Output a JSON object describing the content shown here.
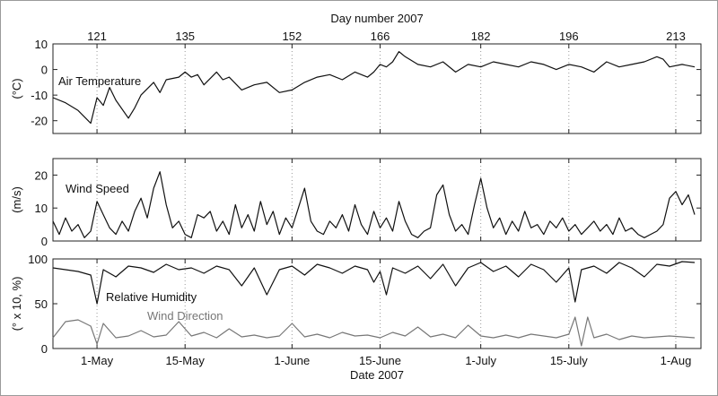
{
  "figure": {
    "top_axis_title": "Day number 2007",
    "bottom_axis_title": "Date 2007"
  },
  "chart_data": {
    "type": "line",
    "x_axis": {
      "unit": "day of year 2007",
      "range": [
        114,
        217
      ],
      "bottom_ticks": [
        {
          "day": 121,
          "label": "1-May"
        },
        {
          "day": 135,
          "label": "15-May"
        },
        {
          "day": 152,
          "label": "1-June"
        },
        {
          "day": 166,
          "label": "15-June"
        },
        {
          "day": 182,
          "label": "1-July"
        },
        {
          "day": 196,
          "label": "15-July"
        },
        {
          "day": 213,
          "label": "1-Aug"
        }
      ],
      "top_ticks": [
        121,
        135,
        152,
        166,
        182,
        196,
        213
      ],
      "grid": true
    },
    "panels": [
      {
        "ylabel": "(°C)",
        "ylim": [
          -25,
          10
        ],
        "yticks": [
          10,
          0,
          -10,
          -20
        ],
        "series": [
          {
            "name": "Air Temperature",
            "color": "#111111",
            "x": [
              114,
              116,
              118,
              120,
              121,
              122,
              123,
              124,
              126,
              127,
              128,
              130,
              131,
              132,
              134,
              135,
              136,
              137,
              138,
              140,
              141,
              142,
              144,
              146,
              148,
              150,
              152,
              154,
              156,
              158,
              160,
              162,
              164,
              165,
              166,
              167,
              168,
              169,
              170,
              172,
              174,
              176,
              178,
              180,
              182,
              184,
              186,
              188,
              190,
              192,
              194,
              196,
              198,
              200,
              202,
              204,
              206,
              208,
              210,
              211,
              212,
              214,
              216
            ],
            "y": [
              -11,
              -13,
              -16,
              -21,
              -11,
              -14,
              -7,
              -12,
              -19,
              -15,
              -10,
              -5,
              -9,
              -4,
              -3,
              -1,
              -3,
              -2,
              -6,
              -1,
              -4,
              -3,
              -8,
              -6,
              -5,
              -9,
              -8,
              -5,
              -3,
              -2,
              -4,
              -1,
              -3,
              -1,
              2,
              1,
              3,
              7,
              5,
              2,
              1,
              3,
              -1,
              2,
              1,
              3,
              2,
              1,
              3,
              2,
              0,
              2,
              1,
              -1,
              3,
              1,
              2,
              3,
              5,
              4,
              1,
              2,
              1
            ]
          }
        ]
      },
      {
        "ylabel": "(m/s)",
        "ylim": [
          0,
          25
        ],
        "yticks": [
          20,
          10,
          0
        ],
        "series": [
          {
            "name": "Wind Speed",
            "color": "#111111",
            "x": [
              114,
              115,
              116,
              117,
              118,
              119,
              120,
              121,
              122,
              123,
              124,
              125,
              126,
              127,
              128,
              129,
              130,
              131,
              132,
              133,
              134,
              135,
              136,
              137,
              138,
              139,
              140,
              141,
              142,
              143,
              144,
              145,
              146,
              147,
              148,
              149,
              150,
              151,
              152,
              153,
              154,
              155,
              156,
              157,
              158,
              159,
              160,
              161,
              162,
              163,
              164,
              165,
              166,
              167,
              168,
              169,
              170,
              171,
              172,
              173,
              174,
              175,
              176,
              177,
              178,
              179,
              180,
              181,
              182,
              183,
              184,
              185,
              186,
              187,
              188,
              189,
              190,
              191,
              192,
              193,
              194,
              195,
              196,
              197,
              198,
              199,
              200,
              201,
              202,
              203,
              204,
              205,
              206,
              207,
              208,
              209,
              210,
              211,
              212,
              213,
              214,
              215,
              216
            ],
            "y": [
              6,
              2,
              7,
              3,
              5,
              1,
              3,
              12,
              8,
              4,
              2,
              6,
              3,
              9,
              13,
              7,
              16,
              21,
              11,
              4,
              6,
              2,
              1,
              8,
              7,
              9,
              3,
              6,
              2,
              11,
              4,
              8,
              3,
              12,
              5,
              9,
              2,
              7,
              4,
              10,
              16,
              6,
              3,
              2,
              6,
              4,
              8,
              3,
              11,
              5,
              2,
              9,
              4,
              7,
              3,
              12,
              6,
              2,
              1,
              3,
              4,
              14,
              17,
              8,
              3,
              5,
              2,
              11,
              19,
              10,
              4,
              7,
              2,
              6,
              3,
              9,
              4,
              5,
              2,
              6,
              4,
              7,
              3,
              5,
              2,
              4,
              6,
              3,
              5,
              2,
              7,
              3,
              4,
              2,
              1,
              2,
              3,
              5,
              13,
              15,
              11,
              14,
              8
            ]
          }
        ]
      },
      {
        "ylabel": "(° x 10, %)",
        "ylim": [
          0,
          100
        ],
        "yticks": [
          100,
          50,
          0
        ],
        "series": [
          {
            "name": "Relative Humidity",
            "color": "#111111",
            "x": [
              114,
              116,
              118,
              120,
              121,
              122,
              124,
              126,
              128,
              130,
              132,
              134,
              136,
              138,
              140,
              142,
              144,
              146,
              148,
              150,
              152,
              154,
              156,
              158,
              160,
              162,
              164,
              165,
              166,
              167,
              168,
              170,
              172,
              174,
              176,
              178,
              180,
              182,
              184,
              186,
              188,
              190,
              192,
              194,
              196,
              197,
              198,
              200,
              202,
              204,
              206,
              208,
              210,
              212,
              214,
              216
            ],
            "y": [
              90,
              88,
              86,
              82,
              50,
              88,
              80,
              92,
              90,
              85,
              94,
              88,
              90,
              84,
              92,
              88,
              70,
              90,
              60,
              88,
              92,
              82,
              94,
              90,
              84,
              92,
              88,
              74,
              86,
              60,
              90,
              84,
              92,
              78,
              94,
              70,
              90,
              96,
              86,
              92,
              80,
              94,
              88,
              74,
              90,
              52,
              88,
              92,
              84,
              96,
              90,
              80,
              94,
              92,
              97,
              96
            ]
          },
          {
            "name": "Wind Direction",
            "color": "#777777",
            "x": [
              114,
              116,
              118,
              120,
              121,
              122,
              124,
              126,
              128,
              130,
              132,
              134,
              136,
              138,
              140,
              142,
              144,
              146,
              148,
              150,
              152,
              154,
              156,
              158,
              160,
              162,
              164,
              166,
              168,
              170,
              172,
              174,
              176,
              178,
              180,
              182,
              184,
              186,
              188,
              190,
              192,
              194,
              196,
              197,
              198,
              199,
              200,
              202,
              204,
              206,
              208,
              210,
              212,
              214,
              216
            ],
            "y": [
              12,
              30,
              32,
              25,
              5,
              28,
              12,
              14,
              20,
              13,
              15,
              30,
              14,
              18,
              12,
              22,
              13,
              15,
              12,
              14,
              28,
              13,
              16,
              12,
              18,
              14,
              15,
              12,
              18,
              14,
              24,
              13,
              16,
              12,
              26,
              14,
              12,
              15,
              12,
              16,
              14,
              12,
              16,
              35,
              3,
              35,
              12,
              16,
              10,
              14,
              12,
              13,
              14,
              13,
              12
            ]
          }
        ]
      }
    ]
  }
}
